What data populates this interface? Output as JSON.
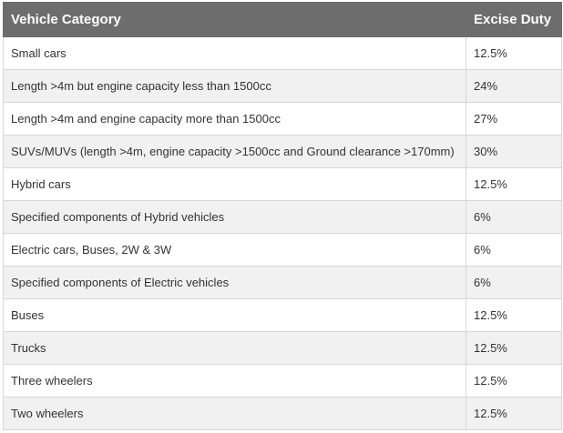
{
  "table": {
    "headers": [
      "Vehicle Category",
      "Excise Duty"
    ],
    "rows": [
      {
        "category": "Small cars",
        "duty": "12.5%"
      },
      {
        "category": "Length >4m but engine capacity less than 1500cc",
        "duty": "24%"
      },
      {
        "category": "Length >4m and engine capacity more than 1500cc",
        "duty": "27%"
      },
      {
        "category": "SUVs/MUVs (length >4m, engine capacity >1500cc and Ground clearance >170mm)",
        "duty": "30%"
      },
      {
        "category": "Hybrid cars",
        "duty": "12.5%"
      },
      {
        "category": "Specified components of Hybrid vehicles",
        "duty": "6%"
      },
      {
        "category": "Electric cars, Buses, 2W & 3W",
        "duty": "6%"
      },
      {
        "category": "Specified components of Electric vehicles",
        "duty": "6%"
      },
      {
        "category": "Buses",
        "duty": "12.5%"
      },
      {
        "category": "Trucks",
        "duty": "12.5%"
      },
      {
        "category": "Three wheelers",
        "duty": "12.5%"
      },
      {
        "category": "Two wheelers",
        "duty": "12.5%"
      }
    ]
  }
}
